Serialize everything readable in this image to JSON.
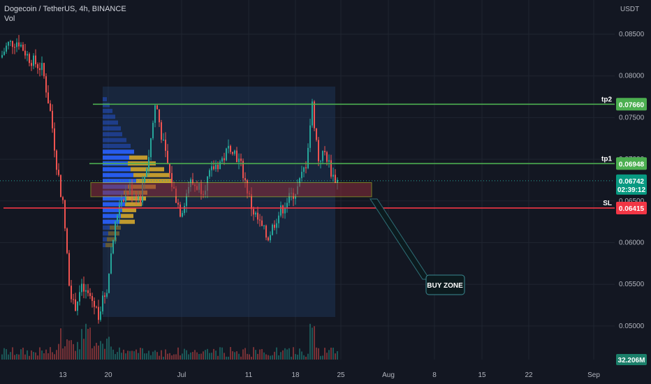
{
  "header": {
    "title": "Dogecoin / TetherUS, 4h, BINANCE",
    "volume_label": "Vol"
  },
  "axis": {
    "currency": "USDT"
  },
  "colors": {
    "background": "#131722",
    "up": "#26a69a",
    "down": "#ef5350",
    "tp_line": "#4caf50",
    "sl_line": "#f23645",
    "zone_fill": "#8b2d3a",
    "zone_border": "#c9d52b",
    "vp_blue": "#2962ff",
    "vp_yellow": "#d4a72c",
    "range_box": "#1e3a5f"
  },
  "chart_data": {
    "type": "candlestick",
    "title": "Dogecoin / TetherUS, 4h, BINANCE",
    "y_range": [
      0.0482,
      0.0878
    ],
    "y_ticks": [
      "0.08500",
      "0.08000",
      "0.07500",
      "0.07000",
      "0.06500",
      "0.06000",
      "0.05500",
      "0.05000"
    ],
    "x_ticks": [
      "13",
      "20",
      "Jul",
      "11",
      "18",
      "25",
      "Aug",
      "8",
      "15",
      "22",
      "Sep"
    ],
    "current_price": "0.06742",
    "countdown": "02:39:12",
    "volume_value": "32.206M",
    "levels": [
      {
        "name": "tp2",
        "value": 0.0766,
        "label": "0.07660"
      },
      {
        "name": "tp1",
        "value": 0.06948,
        "label": "0.06948"
      },
      {
        "name": "SL",
        "value": 0.06415,
        "label": "0.06415"
      }
    ],
    "buy_zone": {
      "low": 0.0655,
      "high": 0.0672,
      "label": "BUY ZONE"
    }
  }
}
